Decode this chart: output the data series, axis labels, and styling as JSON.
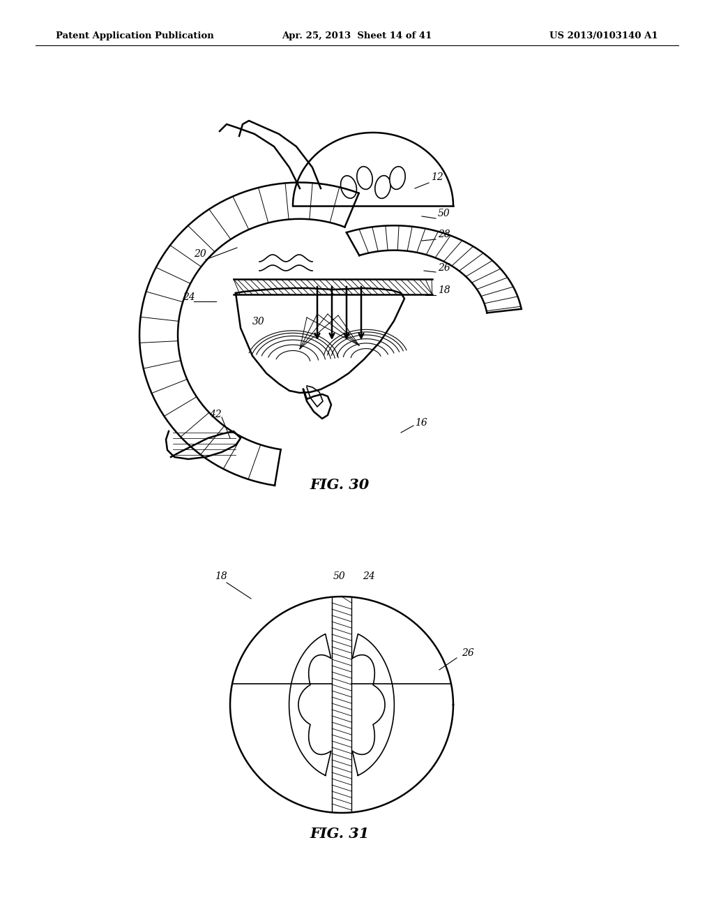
{
  "background_color": "#ffffff",
  "header_left": "Patent Application Publication",
  "header_mid": "Apr. 25, 2013  Sheet 14 of 41",
  "header_right": "US 2013/0103140 A1",
  "fig30_label": "FIG. 30",
  "fig31_label": "FIG. 31"
}
